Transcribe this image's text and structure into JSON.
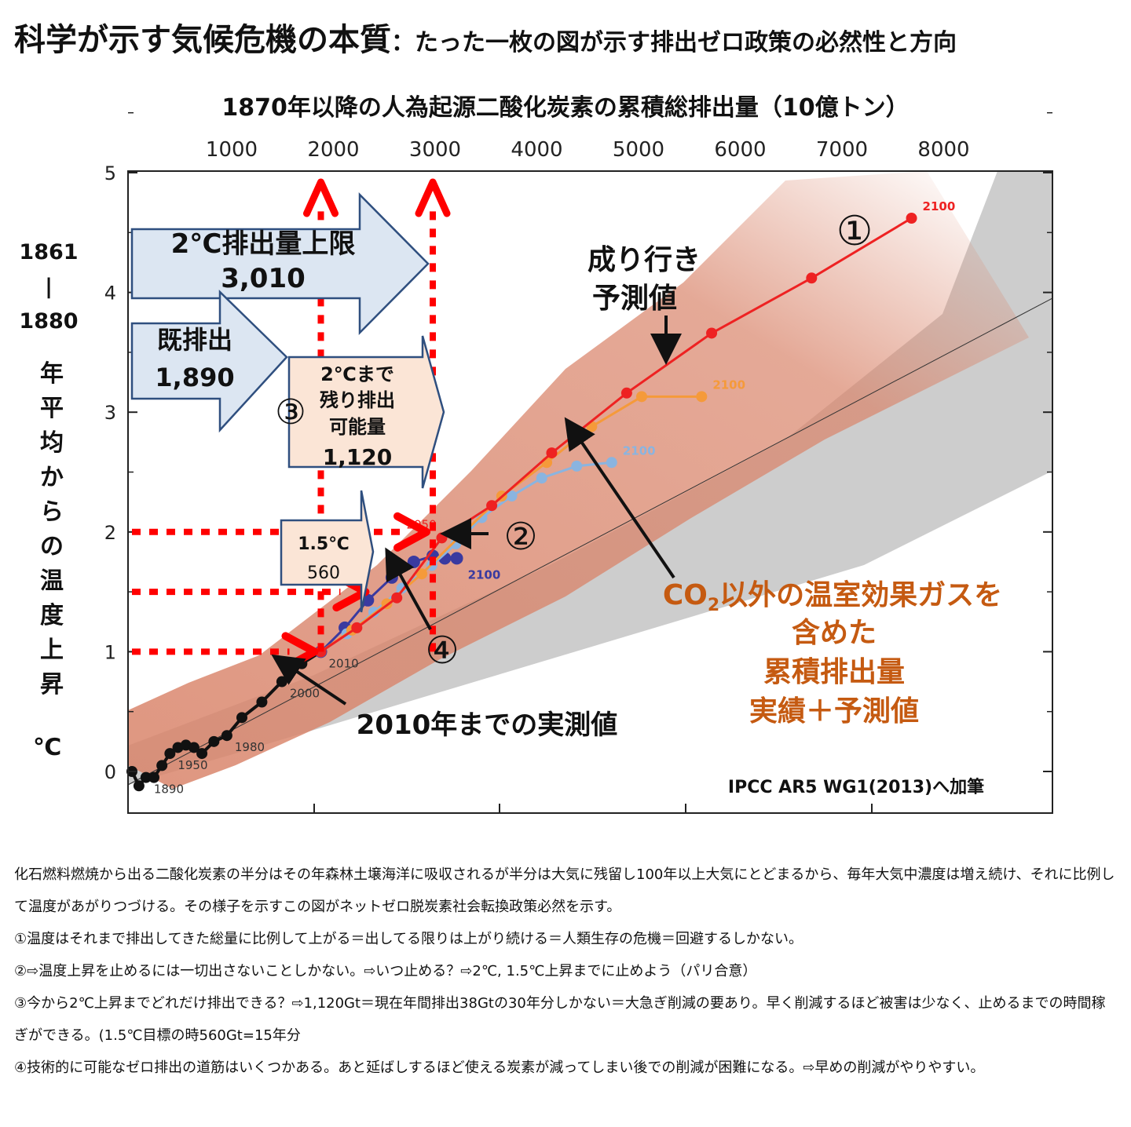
{
  "title": {
    "main": "科学が示す気候危機の本質",
    "sub": "：たった一枚の図が示す排出ゼロ政策の必然性と方向"
  },
  "chart_data": {
    "type": "line",
    "top_axis_title": "1870年以降の人為起源二酸化炭素の累積総排出量（10億トン）",
    "top_ticks": [
      "1000",
      "2000",
      "3000",
      "4000",
      "5000",
      "6000",
      "7000",
      "8000"
    ],
    "y_ticks": [
      "0",
      "1",
      "2",
      "3",
      "4",
      "5"
    ],
    "ylim": [
      0,
      5
    ],
    "ylabel_years": [
      "1861",
      "|",
      "1880"
    ],
    "ylabel_vertical": [
      "年",
      "平",
      "均",
      "か",
      "ら",
      "の",
      "温",
      "度",
      "上",
      "昇"
    ],
    "ylabel_unit": "℃",
    "series": [
      {
        "x": [
          0,
          70,
          140,
          220,
          300,
          380,
          460,
          540,
          620,
          700,
          820,
          950,
          1100,
          1300,
          1500,
          1700,
          1890
        ],
        "y": [
          0.0,
          -0.12,
          -0.05,
          -0.05,
          0.05,
          0.15,
          0.2,
          0.22,
          0.2,
          0.15,
          0.25,
          0.3,
          0.45,
          0.58,
          0.75,
          0.9,
          1.0
        ],
        "year_labels": {
          "1890": 2,
          "1950": 5,
          "1980": 11,
          "2000": 14,
          "2010": 16
        }
      },
      {
        "x": [
          1890,
          2130,
          2360,
          2600,
          2820,
          3010,
          3130,
          3250
        ],
        "y": [
          1.0,
          1.2,
          1.43,
          1.62,
          1.75,
          1.8,
          1.78,
          1.78
        ],
        "end_label": "2100"
      },
      {
        "x": [
          1890,
          2150,
          2420,
          2700,
          3000,
          3240,
          3500,
          3800,
          4100,
          4450,
          4800
        ],
        "y": [
          1.0,
          1.15,
          1.33,
          1.53,
          1.72,
          1.9,
          2.12,
          2.3,
          2.45,
          2.55,
          2.58
        ],
        "end_label": "2100"
      },
      {
        "x": [
          1890,
          2200,
          2550,
          2900,
          3300,
          3700,
          4150,
          4600,
          5100,
          5700
        ],
        "y": [
          1.0,
          1.18,
          1.4,
          1.65,
          1.98,
          2.3,
          2.58,
          2.88,
          3.13,
          3.13
        ],
        "end_label": "2100"
      },
      {
        "x": [
          1890,
          2250,
          2650,
          3100,
          3600,
          4200,
          4950,
          5800,
          6800,
          7800
        ],
        "y": [
          1.0,
          1.2,
          1.45,
          1.95,
          2.22,
          2.66,
          3.16,
          3.66,
          4.12,
          4.62
        ],
        "year_labels": {
          "2050": 3
        },
        "end_label": "2100"
      }
    ],
    "red_lines": {
      "vertical_x": [
        1890,
        3010
      ],
      "horizontal_y": [
        1.0,
        1.5,
        2.0
      ]
    },
    "annotations": {
      "box_2c_limit": [
        "2℃排出量上限",
        "3,010"
      ],
      "box_emitted": [
        "既排出",
        "1,890"
      ],
      "box_remaining": [
        "2℃まで",
        "残り排出",
        "可能量",
        "1,120"
      ],
      "box_15c": [
        "1.5℃",
        "560"
      ],
      "circle_1": "①",
      "circle_2": "②",
      "circle_3": "③",
      "circle_4": "④",
      "bau_label": [
        "成り行き",
        "予測値"
      ],
      "observed_label": "2010年までの実測値",
      "non_co2_label_a": "CO",
      "non_co2_label_sub": "2",
      "non_co2_label_b": "以外の温室効果ガスを",
      "non_co2_lines": [
        "含めた",
        "累積排出量",
        "実績＋予測値"
      ],
      "source": "IPCC AR5 WG1(2013)へ加筆"
    },
    "colors": {
      "rcp85": "#ee2222",
      "rcp60": "#f59a3a",
      "rcp45": "#8ab4e0",
      "rcp26": "#3a3aa0",
      "observed": "#111111",
      "band_red": "#d9846a",
      "band_grey": "#c8c8c8",
      "arrow_red": "#ff0000",
      "box_fill_blue": "#dce6f2",
      "box_stroke_blue": "#2f4f7f",
      "box_fill_peach": "#fbe5d6",
      "brown_text": "#c55a11"
    }
  },
  "notes": [
    "化石燃料燃焼から出る二酸化炭素の半分はその年森林土壌海洋に吸収されるが半分は大気に残留し100年以上大気にとどまるから、毎年大気中濃度は増え続け、それに比例して温度があがりつづける。その様子を示すこの図がネットゼロ脱炭素社会転換政策必然を示す。",
    "①温度はそれまで排出してきた総量に比例して上がる＝出してる限りは上がり続ける＝人類生存の危機＝回避するしかない。",
    "②⇨温度上昇を止めるには一切出さないことしかない。⇨いつ止める？⇨2℃, 1.5℃上昇までに止めよう（パリ合意）",
    "③今から2℃上昇までどれだけ排出できる？⇨1,120Gt＝現在年間排出38Gtの30年分しかない＝大急ぎ削減の要あり。早く削減するほど被害は少なく、止めるまでの時間稼ぎができる。(1.5℃目標の時560Gt=15年分",
    "④技術的に可能なゼロ排出の道筋はいくつかある。あと延ばしするほど使える炭素が減ってしまい後での削減が困難になる。⇨早めの削減がやりやすい。"
  ]
}
